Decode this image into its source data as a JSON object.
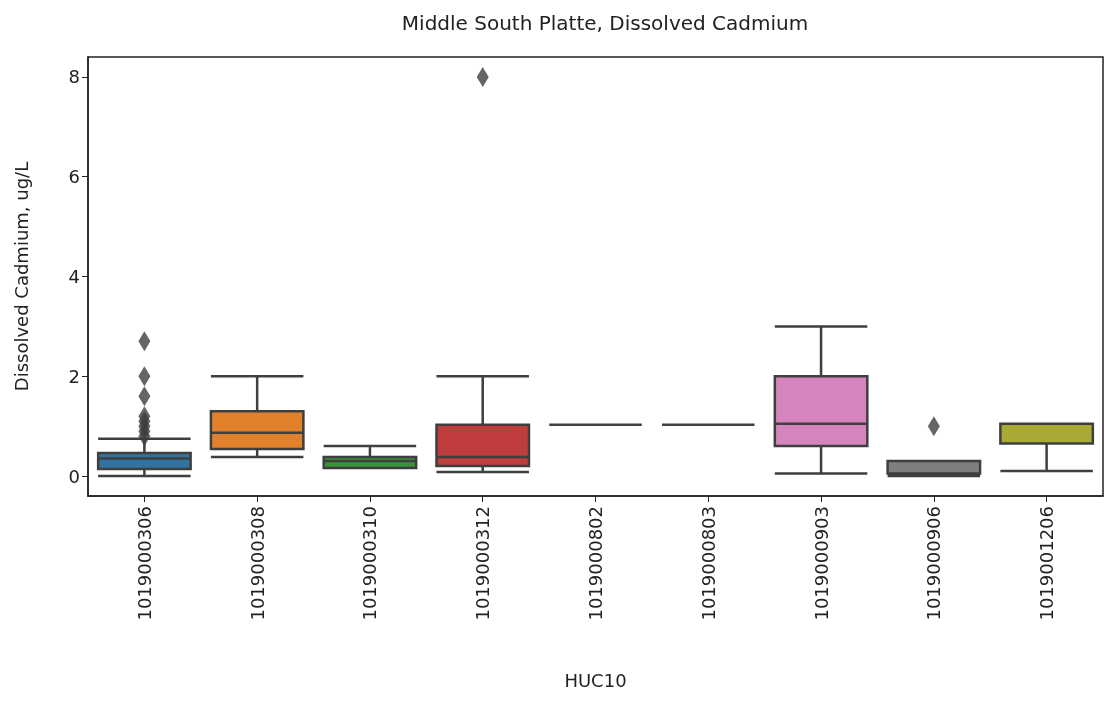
{
  "chart_data": {
    "type": "box",
    "title": "Middle South Platte, Dissolved Cadmium",
    "xlabel": "HUC10",
    "ylabel": "Dissolved Cadmium, ug/L",
    "categories": [
      "1019000306",
      "1019000308",
      "1019000310",
      "1019000312",
      "1019000802",
      "1019000803",
      "1019000903",
      "1019000906",
      "1019001206"
    ],
    "colors": [
      "#3274a1",
      "#e1812c",
      "#3a923a",
      "#c03d3e",
      "#3f3f3f",
      "#3f3f3f",
      "#d684bd",
      "#7f7f7f",
      "#a9aa35"
    ],
    "boxes": [
      {
        "low": 0.0,
        "q1": 0.14,
        "median": 0.35,
        "q3": 0.46,
        "high": 0.75,
        "outliers": [
          0.8,
          0.9,
          1.0,
          1.1,
          1.2,
          1.6,
          2.0,
          2.7
        ]
      },
      {
        "low": 0.38,
        "q1": 0.54,
        "median": 0.87,
        "q3": 1.3,
        "high": 2.0
      },
      {
        "low": 0.16,
        "q1": 0.16,
        "median": 0.3,
        "q3": 0.38,
        "high": 0.6
      },
      {
        "low": 0.08,
        "q1": 0.2,
        "median": 0.38,
        "q3": 1.03,
        "high": 2.0,
        "outliers": [
          8.0
        ]
      },
      {
        "low": 1.03,
        "q1": 1.03,
        "median": 1.03,
        "q3": 1.03,
        "high": 1.03
      },
      {
        "low": 1.03,
        "q1": 1.03,
        "median": 1.03,
        "q3": 1.03,
        "high": 1.03
      },
      {
        "low": 0.05,
        "q1": 0.6,
        "median": 1.05,
        "q3": 2.0,
        "high": 3.0
      },
      {
        "low": 0.0,
        "q1": 0.05,
        "median": 0.05,
        "q3": 0.3,
        "high": 0.3,
        "outliers": [
          1.0
        ]
      },
      {
        "low": 0.1,
        "q1": 0.65,
        "median": 1.05,
        "q3": 1.05,
        "high": 1.05
      }
    ],
    "ylim": [
      -0.4,
      8.4
    ],
    "yticks": [
      0,
      2,
      4,
      6,
      8
    ],
    "grid": false
  }
}
